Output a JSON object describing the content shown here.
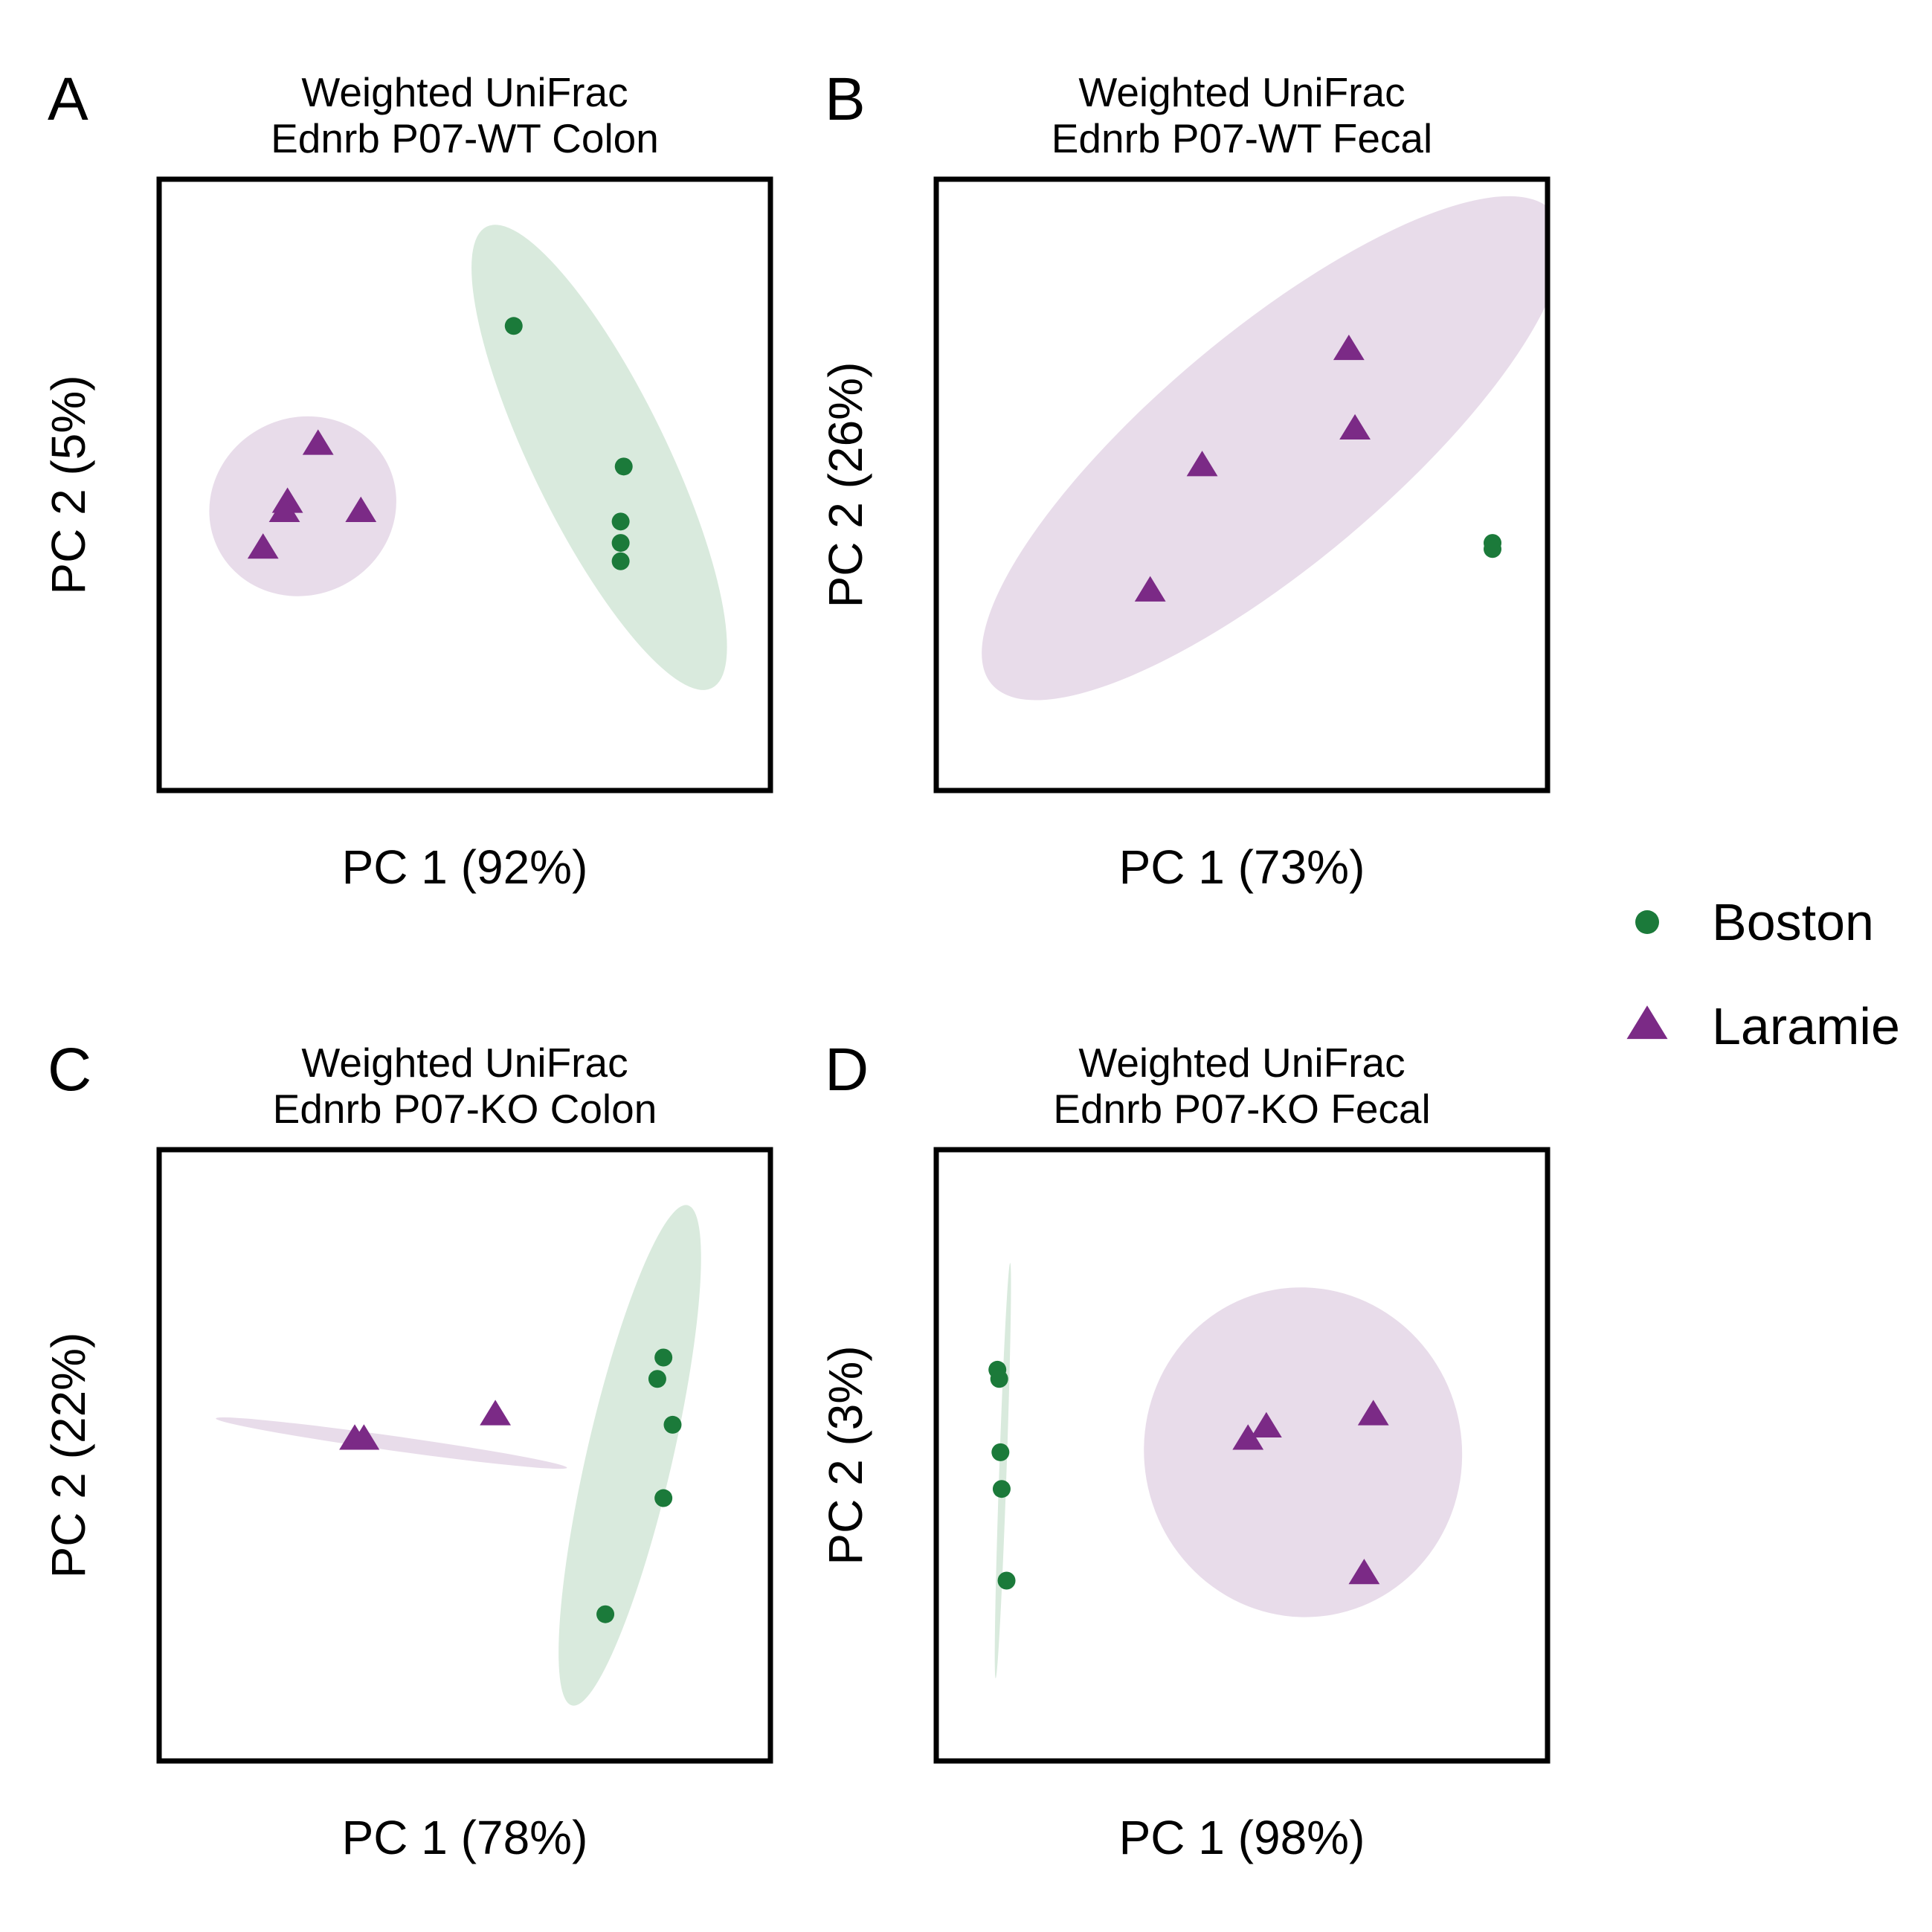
{
  "legend": {
    "placement": "right",
    "items": [
      {
        "label": "Boston",
        "color": "#1b7a3a",
        "shape": "circle"
      },
      {
        "label": "Laramie",
        "color": "#7b2a86",
        "shape": "triangle"
      }
    ]
  },
  "colors": {
    "boston": "#1b7a3a",
    "laramie": "#7b2a86",
    "boston_fill": "#d9eadd",
    "laramie_fill": "#e8dcea"
  },
  "chart_data": [
    {
      "panel": "A",
      "type": "scatter",
      "title": "Weighted UniFrac\nEdnrb P07-WT Colon",
      "xlabel": "PC 1 (92%)",
      "ylabel": "PC 2 (5%)",
      "xlim": [
        0,
        100
      ],
      "ylim": [
        0,
        100
      ],
      "grid": false,
      "series": [
        {
          "name": "Boston",
          "points": [
            [
              58,
              76
            ],
            [
              76,
              53
            ],
            [
              75.5,
              44
            ],
            [
              75.5,
              40.5
            ],
            [
              75.5,
              37.5
            ]
          ],
          "ellipse": {
            "cx": 72,
            "cy": 54.5,
            "rx": 42,
            "ry": 11,
            "angle": -64
          }
        },
        {
          "name": "Laramie",
          "points": [
            [
              26,
              56.5
            ],
            [
              21,
              47
            ],
            [
              20.5,
              45.5
            ],
            [
              33,
              45.5
            ],
            [
              17,
              39.5
            ]
          ],
          "ellipse": {
            "cx": 23.5,
            "cy": 46.5,
            "rx": 15.5,
            "ry": 14.5,
            "angle": 27
          }
        }
      ]
    },
    {
      "panel": "B",
      "type": "scatter",
      "title": "Weighted UniFrac\nEdnrb P07-WT Fecal",
      "xlabel": "PC 1 (73%)",
      "ylabel": "PC 2 (26%)",
      "xlim": [
        0,
        100
      ],
      "ylim": [
        0,
        100
      ],
      "grid": false,
      "series": [
        {
          "name": "Boston",
          "points": [
            [
              91,
              40.5
            ],
            [
              91,
              39.5
            ]
          ]
        },
        {
          "name": "Laramie",
          "points": [
            [
              67.5,
              72
            ],
            [
              68.5,
              59
            ],
            [
              43.5,
              53
            ],
            [
              35,
              32.5
            ]
          ],
          "ellipse": {
            "cx": 55,
            "cy": 56,
            "rx": 60,
            "ry": 19,
            "angle": 40
          }
        }
      ]
    },
    {
      "panel": "C",
      "type": "scatter",
      "title": "Weighted UniFrac\nEdnrb P07-KO Colon",
      "xlabel": "PC 1 (78%)",
      "ylabel": "PC 2 (22%)",
      "xlim": [
        0,
        100
      ],
      "ylim": [
        0,
        100
      ],
      "grid": false,
      "series": [
        {
          "name": "Boston",
          "points": [
            [
              82.5,
              66
            ],
            [
              81.5,
              62.5
            ],
            [
              84,
              55
            ],
            [
              82.5,
              43
            ],
            [
              73,
              24
            ]
          ],
          "ellipse": {
            "cx": 77,
            "cy": 50,
            "rx": 42,
            "ry": 7,
            "angle": 77
          }
        },
        {
          "name": "Laramie",
          "points": [
            [
              55,
              56.5
            ],
            [
              32,
              52.5
            ],
            [
              33.5,
              52.5
            ]
          ],
          "ellipse": {
            "cx": 38,
            "cy": 52,
            "rx": 29,
            "ry": 1.2,
            "angle": -8
          }
        }
      ]
    },
    {
      "panel": "D",
      "type": "scatter",
      "title": "Weighted UniFrac\nEdnrb P07-KO Fecal",
      "xlabel": "PC 1 (98%)",
      "ylabel": "PC 2 (3%)",
      "xlim": [
        0,
        100
      ],
      "ylim": [
        0,
        100
      ],
      "grid": false,
      "series": [
        {
          "name": "Boston",
          "points": [
            [
              10,
              64
            ],
            [
              10.3,
              62.5
            ],
            [
              10.5,
              50.5
            ],
            [
              10.7,
              44.5
            ],
            [
              11.5,
              29.5
            ]
          ],
          "ellipse": {
            "cx": 10.9,
            "cy": 47.5,
            "rx": 34,
            "ry": 0.6,
            "angle": 88
          }
        },
        {
          "name": "Laramie",
          "points": [
            [
              71.5,
              56.5
            ],
            [
              54,
              54.5
            ],
            [
              51,
              52.5
            ],
            [
              70,
              30.5
            ]
          ],
          "ellipse": {
            "cx": 60,
            "cy": 50.5,
            "rx": 26,
            "ry": 27,
            "angle": 10
          }
        }
      ]
    }
  ]
}
